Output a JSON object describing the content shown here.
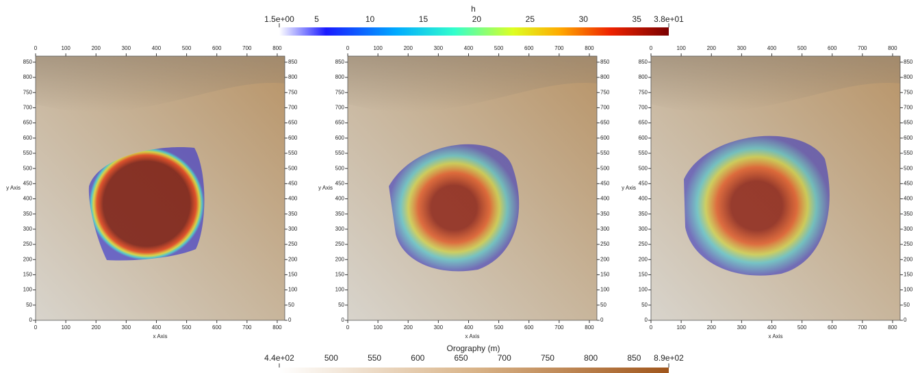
{
  "colorbars": [
    {
      "title": "h",
      "range": [
        1.5,
        38
      ],
      "ticks": [
        {
          "value": 1.5,
          "label": "1.5e+00"
        },
        5,
        10,
        15,
        20,
        25,
        30,
        35,
        {
          "value": 38,
          "label": "3.8e+01"
        }
      ]
    },
    {
      "title": "Orography (m)",
      "range": [
        440,
        890
      ],
      "ticks": [
        {
          "value": 440,
          "label": "4.4e+02"
        },
        500,
        550,
        600,
        650,
        700,
        750,
        800,
        850,
        {
          "value": 890,
          "label": "8.9e+02"
        }
      ]
    }
  ],
  "panels": [
    {
      "xlabel": "x Axis",
      "ylabel": "y Axis",
      "xlim": [
        0,
        825
      ],
      "ylim": [
        0,
        870
      ],
      "xticks": [
        0,
        100,
        200,
        300,
        400,
        500,
        600,
        700,
        800
      ],
      "yticks": [
        0,
        50,
        100,
        150,
        200,
        250,
        300,
        350,
        400,
        450,
        500,
        550,
        600,
        650,
        700,
        750,
        800,
        850
      ]
    },
    {
      "xlabel": "x Axis",
      "ylabel": "y Axis",
      "xlim": [
        0,
        825
      ],
      "ylim": [
        0,
        870
      ],
      "xticks": [
        0,
        100,
        200,
        300,
        400,
        500,
        600,
        700,
        800
      ],
      "yticks": [
        0,
        50,
        100,
        150,
        200,
        250,
        300,
        350,
        400,
        450,
        500,
        550,
        600,
        650,
        700,
        750,
        800,
        850
      ]
    },
    {
      "xlabel": "x Axis",
      "ylabel": "y Axis",
      "xlim": [
        0,
        825
      ],
      "ylim": [
        0,
        870
      ],
      "xticks": [
        0,
        100,
        200,
        300,
        400,
        500,
        600,
        700,
        800
      ],
      "yticks": [
        0,
        50,
        100,
        150,
        200,
        250,
        300,
        350,
        400,
        450,
        500,
        550,
        600,
        650,
        700,
        750,
        800,
        850
      ]
    }
  ]
}
